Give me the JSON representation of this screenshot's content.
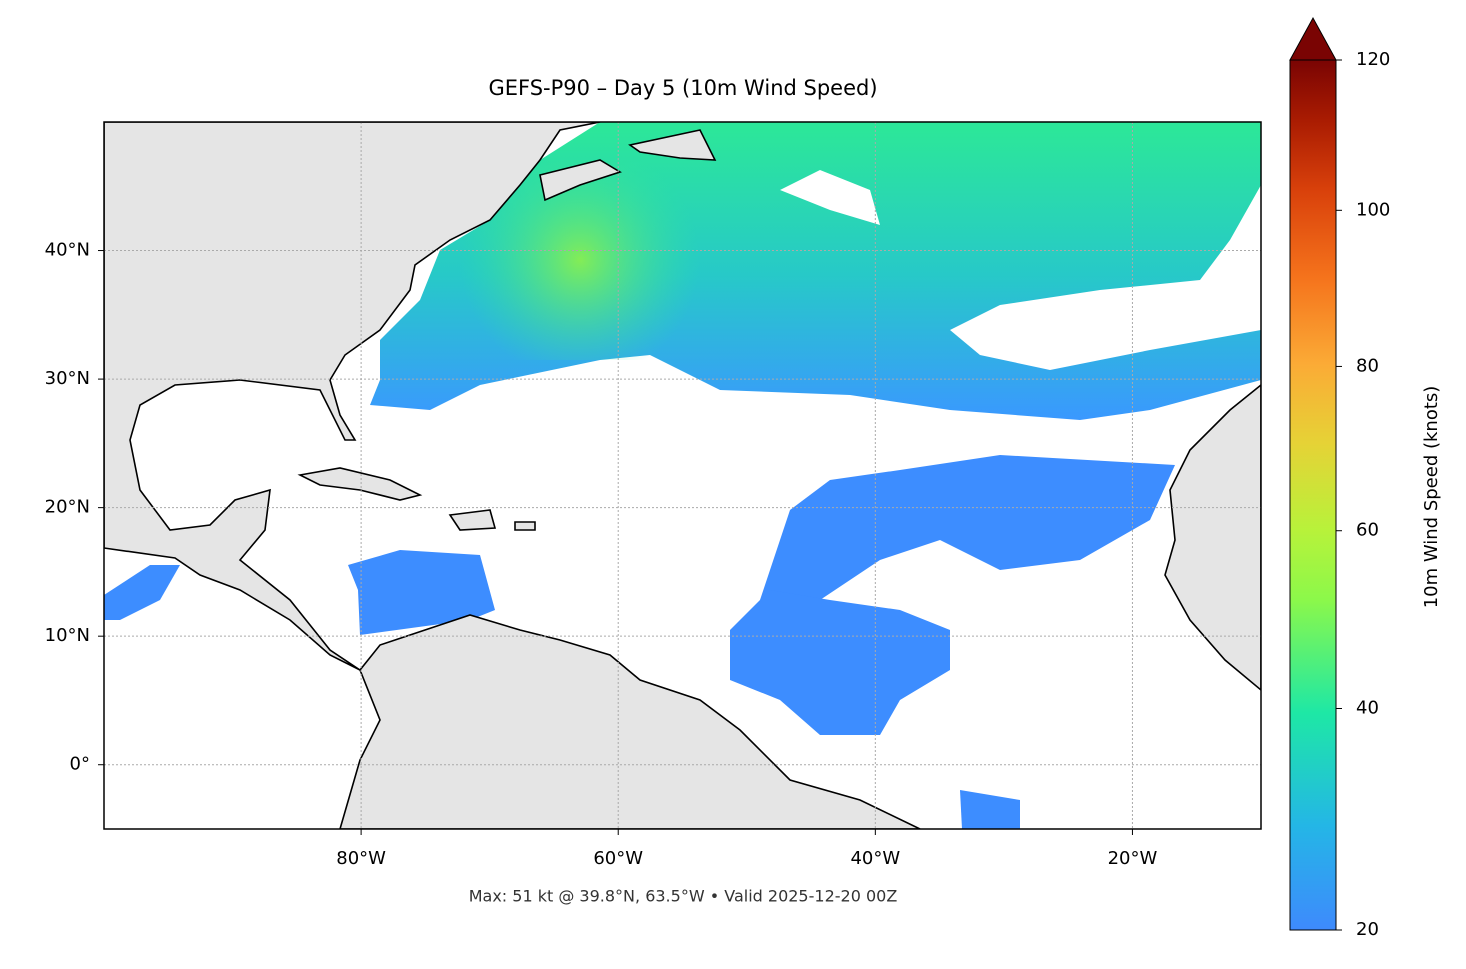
{
  "title": "GEFS-P90 – Day 5 (10m Wind Speed)",
  "footer": "Max: 51 kt @ 39.8°N, 63.5°W • Valid 2025-12-20 00Z",
  "map": {
    "xlim": [
      -100,
      -10
    ],
    "ylim": [
      -5,
      50
    ],
    "xticks": [
      {
        "value": -80,
        "label": "80°W"
      },
      {
        "value": -60,
        "label": "60°W"
      },
      {
        "value": -40,
        "label": "40°W"
      },
      {
        "value": -20,
        "label": "20°W"
      }
    ],
    "yticks": [
      {
        "value": 0,
        "label": "0°"
      },
      {
        "value": 10,
        "label": "10°N"
      },
      {
        "value": 20,
        "label": "20°N"
      },
      {
        "value": 30,
        "label": "30°N"
      },
      {
        "value": 40,
        "label": "40°N"
      }
    ],
    "grid": true
  },
  "colorbar": {
    "label": "10m Wind Speed (knots)",
    "lim": [
      20,
      120
    ],
    "ticks": [
      20,
      40,
      60,
      80,
      100,
      120
    ],
    "gamma": 0.85,
    "extend": "max"
  }
}
